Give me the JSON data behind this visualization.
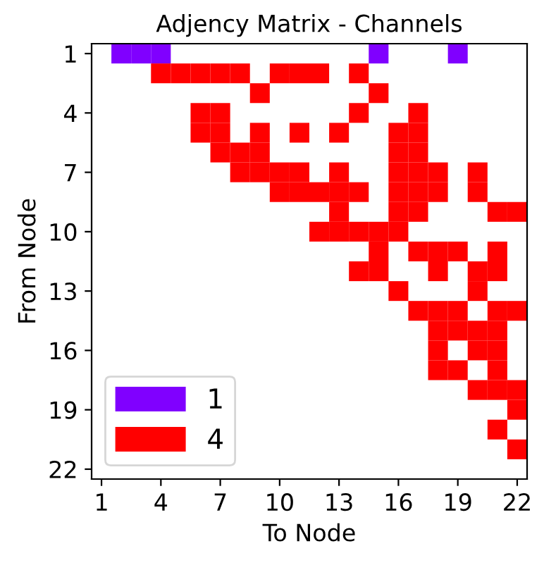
{
  "chart_data": {
    "type": "scatter",
    "title": "Adjency Matrix - Channels",
    "xlabel": "To Node",
    "ylabel": "From Node",
    "xlim": [
      0.5,
      22.5
    ],
    "ylim": [
      22.5,
      0.5
    ],
    "xticks": [
      1,
      4,
      7,
      10,
      13,
      16,
      19,
      22
    ],
    "yticks": [
      1,
      4,
      7,
      10,
      13,
      16,
      19,
      22
    ],
    "legend": "bottom left",
    "grid": false,
    "marker": "square",
    "series": [
      {
        "name": "1",
        "color": "#8000ff",
        "x": [
          2,
          3,
          4,
          15,
          19
        ],
        "values": [
          1,
          1,
          1,
          1,
          1
        ]
      },
      {
        "name": "4",
        "color": "#ff0000",
        "x": [
          4,
          5,
          6,
          7,
          8,
          10,
          11,
          12,
          14,
          9,
          15,
          6,
          7,
          14,
          17,
          6,
          7,
          9,
          11,
          13,
          16,
          17,
          7,
          8,
          9,
          16,
          17,
          8,
          9,
          10,
          11,
          13,
          16,
          17,
          18,
          20,
          10,
          11,
          12,
          13,
          14,
          16,
          17,
          18,
          20,
          13,
          16,
          17,
          21,
          22,
          12,
          13,
          14,
          15,
          16,
          15,
          17,
          18,
          19,
          21,
          14,
          15,
          18,
          20,
          21,
          16,
          20,
          17,
          18,
          19,
          21,
          22,
          18,
          19,
          20,
          21,
          18,
          20,
          21,
          18,
          19,
          21,
          20,
          21,
          22,
          22,
          21,
          22
        ],
        "values": [
          2,
          2,
          2,
          2,
          2,
          2,
          2,
          2,
          2,
          3,
          3,
          4,
          4,
          4,
          4,
          5,
          5,
          5,
          5,
          5,
          5,
          5,
          6,
          6,
          6,
          6,
          6,
          7,
          7,
          7,
          7,
          7,
          7,
          7,
          7,
          7,
          8,
          8,
          8,
          8,
          8,
          8,
          8,
          8,
          8,
          9,
          9,
          9,
          9,
          9,
          10,
          10,
          10,
          10,
          10,
          11,
          11,
          11,
          11,
          11,
          12,
          12,
          12,
          12,
          12,
          13,
          13,
          14,
          14,
          14,
          14,
          14,
          15,
          15,
          15,
          15,
          16,
          16,
          16,
          17,
          17,
          17,
          18,
          18,
          18,
          19,
          20,
          21
        ]
      }
    ]
  }
}
